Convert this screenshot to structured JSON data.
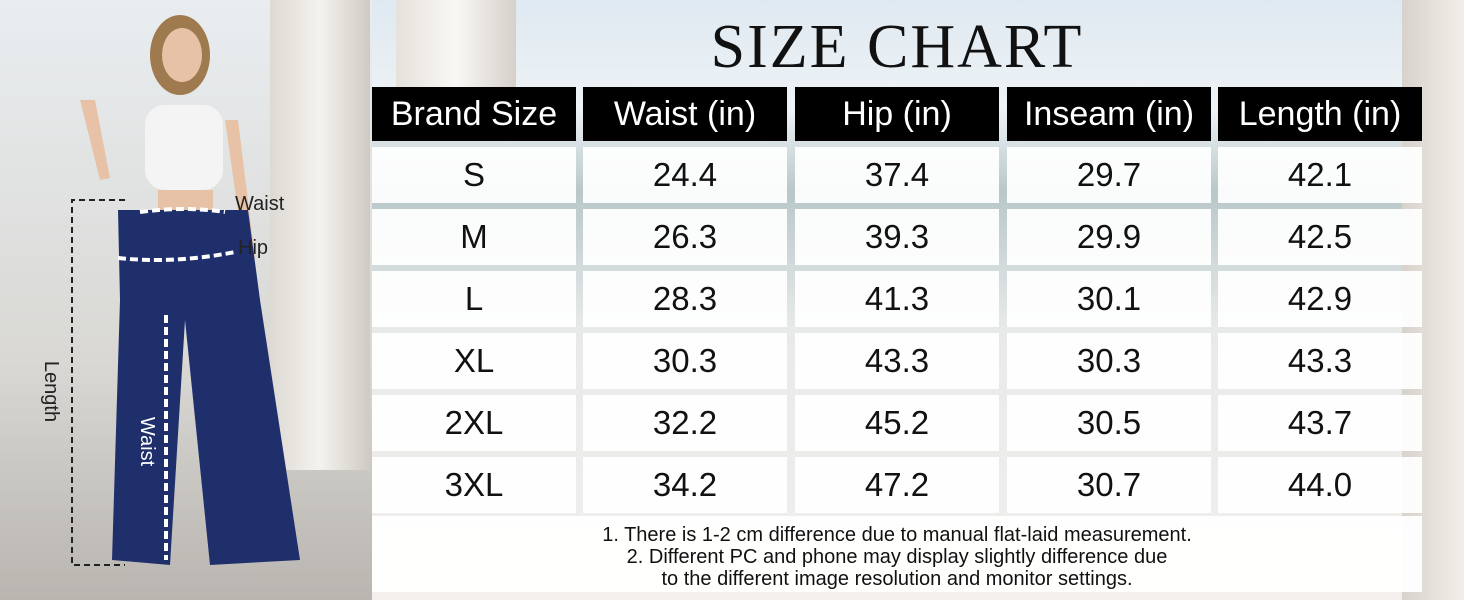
{
  "title": "SIZE CHART",
  "figure": {
    "labels": [
      "Waist",
      "Hip",
      "Length",
      "Waist"
    ]
  },
  "table": {
    "header": [
      "Brand Size",
      "Waist (in)",
      "Hip (in)",
      "Inseam (in)",
      "Length (in)"
    ],
    "rows": [
      [
        "S",
        "24.4",
        "37.4",
        "29.7",
        "42.1"
      ],
      [
        "M",
        "26.3",
        "39.3",
        "29.9",
        "42.5"
      ],
      [
        "L",
        "28.3",
        "41.3",
        "30.1",
        "42.9"
      ],
      [
        "XL",
        "30.3",
        "43.3",
        "30.3",
        "43.3"
      ],
      [
        "2XL",
        "32.2",
        "45.2",
        "30.5",
        "43.7"
      ],
      [
        "3XL",
        "34.2",
        "47.2",
        "30.7",
        "44.0"
      ]
    ]
  },
  "notes": [
    "1. There is 1-2 cm difference due to manual flat-laid measurement.",
    "2. Different PC and phone may display slightly difference due",
    "to the different image resolution and monitor settings."
  ]
}
